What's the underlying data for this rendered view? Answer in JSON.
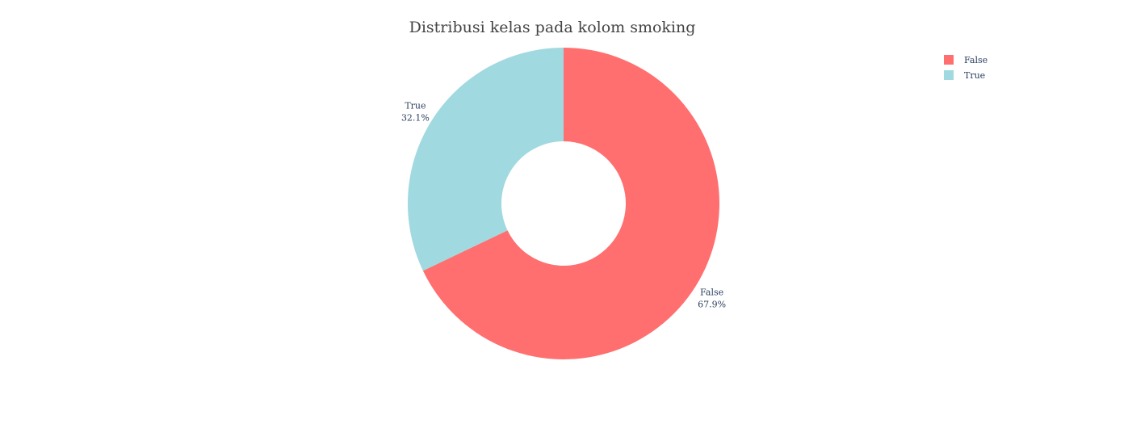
{
  "chart_data": {
    "type": "pie",
    "hole": true,
    "title": "Distribusi kelas pada kolom smoking",
    "slices": [
      {
        "label": "False",
        "percent_text": "67.9%",
        "value": 67.9,
        "color": "#ff6f6f"
      },
      {
        "label": "True",
        "percent_text": "32.1%",
        "value": 32.1,
        "color": "#a1d9e0"
      }
    ],
    "legend": {
      "position": "top-right",
      "items": [
        {
          "label": "False",
          "color": "#ff6f6f"
        },
        {
          "label": "True",
          "color": "#a1d9e0"
        }
      ]
    }
  }
}
